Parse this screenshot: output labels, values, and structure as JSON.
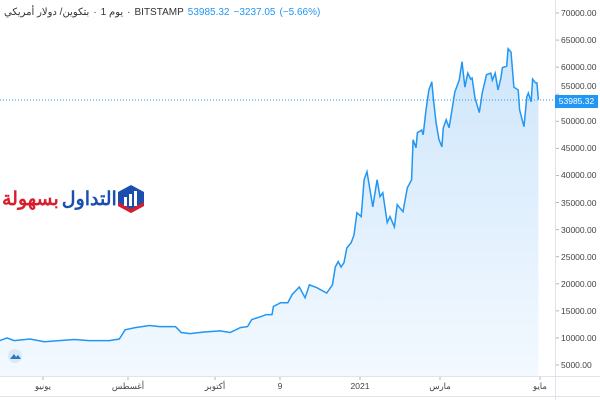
{
  "header": {
    "symbol": "بتكوين/ دولار أمريكي",
    "interval": "يوم 1",
    "exchange": "BITSTAMP",
    "last_price": "53985.32",
    "change": "−3237.05",
    "change_pct": "(−5.66%)",
    "separator": "·"
  },
  "logo": {
    "text_main": "التداول",
    "text_accent": "بسهولة",
    "colors": {
      "main": "#1a4fb0",
      "accent": "#d81e2c"
    }
  },
  "colors": {
    "line": "#2196f3",
    "fill": "#d6eafc",
    "price_label": "#2196f3"
  },
  "chart_data": {
    "type": "area",
    "title": "",
    "ylim": [
      5000,
      70000
    ],
    "y_ticks": [
      "70000.00",
      "65000.00",
      "60000.00",
      "55000.00",
      "50000.00",
      "45000.00",
      "40000.00",
      "35000.00",
      "30000.00",
      "25000.00",
      "20000.00",
      "15000.00",
      "10000.00",
      "5000.00"
    ],
    "x_ticks": [
      "يونيو",
      "أغسطس",
      "أكتوبر",
      "9",
      "2021",
      "مارس",
      "مايو"
    ],
    "current_price_label": "53985.32",
    "grid": false,
    "series": [
      {
        "dates": [
          "2020-04-26",
          "2020-05-01",
          "2020-05-06",
          "2020-05-17",
          "2020-05-27",
          "2020-06-06",
          "2020-06-17",
          "2020-06-27",
          "2020-07-11",
          "2020-07-18",
          "2020-07-22",
          "2020-07-29",
          "2020-08-08",
          "2020-08-15",
          "2020-08-26",
          "2020-08-30",
          "2020-09-05",
          "2020-09-15",
          "2020-09-26",
          "2020-10-03",
          "2020-10-10",
          "2020-10-15",
          "2020-10-18",
          "2020-10-24",
          "2020-10-28",
          "2020-11-01",
          "2020-11-02",
          "2020-11-07",
          "2020-11-12",
          "2020-11-15",
          "2020-11-20",
          "2020-11-24",
          "2020-11-27",
          "2020-12-02",
          "2020-12-09",
          "2020-12-13",
          "2020-12-15",
          "2020-12-17",
          "2020-12-19",
          "2020-12-21",
          "2020-12-23",
          "2020-12-26",
          "2020-12-28",
          "2020-12-30",
          "2021-01-02",
          "2021-01-04",
          "2021-01-06",
          "2021-01-10",
          "2021-01-13",
          "2021-01-15",
          "2021-01-17",
          "2021-01-20",
          "2021-01-22",
          "2021-01-25",
          "2021-01-27",
          "2021-01-31",
          "2021-02-03",
          "2021-02-06",
          "2021-02-07",
          "2021-02-09",
          "2021-02-10",
          "2021-02-13",
          "2021-02-14",
          "2021-02-16",
          "2021-02-18",
          "2021-02-20",
          "2021-02-21",
          "2021-02-23",
          "2021-02-25",
          "2021-02-27",
          "2021-02-28",
          "2021-03-02",
          "2021-03-04",
          "2021-03-06",
          "2021-03-08",
          "2021-03-11",
          "2021-03-13",
          "2021-03-15",
          "2021-03-17",
          "2021-03-19",
          "2021-03-20",
          "2021-03-22",
          "2021-03-25",
          "2021-03-27",
          "2021-03-30",
          "2021-04-02",
          "2021-04-03",
          "2021-04-05",
          "2021-04-07",
          "2021-04-09",
          "2021-04-10",
          "2021-04-13",
          "2021-04-14",
          "2021-04-16",
          "2021-04-18",
          "2021-04-21",
          "2021-04-22",
          "2021-04-25",
          "2021-04-27",
          "2021-04-28",
          "2021-04-30",
          "2021-05-01",
          "2021-05-03",
          "2021-05-04",
          "2021-05-05"
        ],
        "values": [
          9500,
          10000,
          9500,
          9800,
          9300,
          9500,
          9700,
          9500,
          9500,
          9800,
          11500,
          11900,
          12300,
          12100,
          12100,
          11000,
          10800,
          11100,
          11300,
          11000,
          11900,
          12100,
          13400,
          13900,
          14300,
          14300,
          15800,
          16500,
          16500,
          18000,
          19400,
          17400,
          19800,
          19300,
          18300,
          19800,
          23100,
          24100,
          23100,
          23900,
          26600,
          27600,
          29000,
          33100,
          32400,
          39200,
          40700,
          34200,
          39200,
          36100,
          36800,
          31300,
          32400,
          30500,
          34600,
          33300,
          37700,
          39200,
          46600,
          45100,
          47900,
          48400,
          47500,
          52100,
          55800,
          57300,
          54500,
          49700,
          46600,
          45300,
          48800,
          50300,
          48800,
          52100,
          55400,
          57600,
          61000,
          56300,
          58900,
          57800,
          58000,
          54300,
          51600,
          55200,
          58600,
          58900,
          57600,
          58900,
          55800,
          58000,
          59900,
          60200,
          63400,
          62800,
          56300,
          55800,
          52100,
          49000,
          54500,
          55200,
          53600,
          57800,
          57100,
          57100,
          53985
        ]
      }
    ]
  }
}
